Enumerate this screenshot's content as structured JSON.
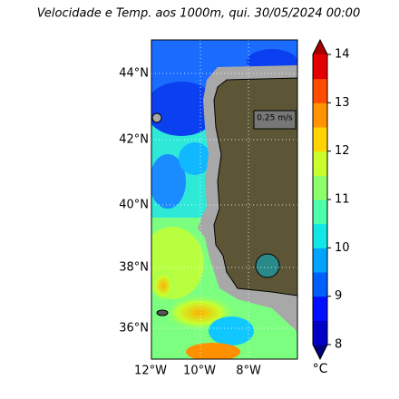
{
  "title": "Velocidade e Temp. aos 1000m, qui. 30/05/2024 00:00",
  "map": {
    "lat_labels": [
      "44°N",
      "42°N",
      "40°N",
      "38°N",
      "36°N"
    ],
    "lon_labels": [
      "12°W",
      "10°W",
      "8°W"
    ],
    "scale_label": "0.25 m/s"
  },
  "colorbar": {
    "ticks": [
      8,
      9,
      10,
      11,
      12,
      13,
      14
    ],
    "lim": [
      8,
      14
    ],
    "unit": "°C",
    "colors": [
      "#00007f",
      "#0000c8",
      "#0010ff",
      "#0060ff",
      "#00a4ff",
      "#10e8e6",
      "#4cffaa",
      "#8cff6a",
      "#caff2c",
      "#ffd400",
      "#ff9400",
      "#ff4c00",
      "#e40000",
      "#a80000"
    ]
  }
}
